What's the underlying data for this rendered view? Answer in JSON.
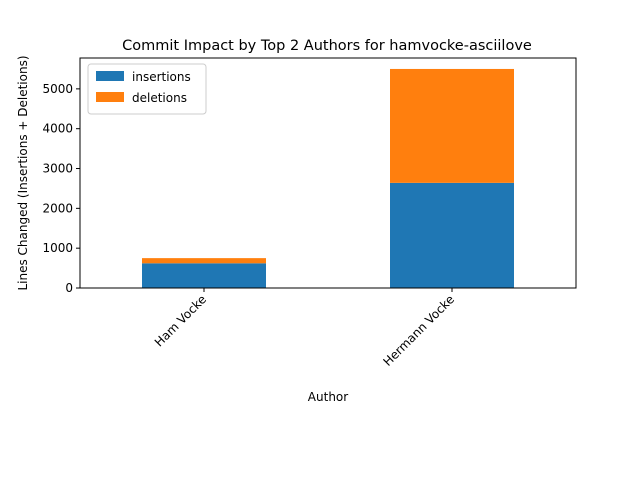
{
  "chart_data": {
    "type": "bar",
    "stacked": true,
    "title": "Commit Impact by Top 2 Authors for hamvocke-asciilove",
    "xlabel": "Author",
    "ylabel": "Lines Changed (Insertions + Deletions)",
    "categories": [
      "Ham Vocke",
      "Hermann Vocke"
    ],
    "series": [
      {
        "name": "insertions",
        "values": [
          620,
          2640
        ],
        "color": "#1f77b4"
      },
      {
        "name": "deletions",
        "values": [
          130,
          2860
        ],
        "color": "#ff7f0e"
      }
    ],
    "yticks": [
      0,
      1000,
      2000,
      3000,
      4000,
      5000
    ],
    "ylim": [
      0,
      5775
    ],
    "grid": false,
    "legend_position": "top-left"
  }
}
